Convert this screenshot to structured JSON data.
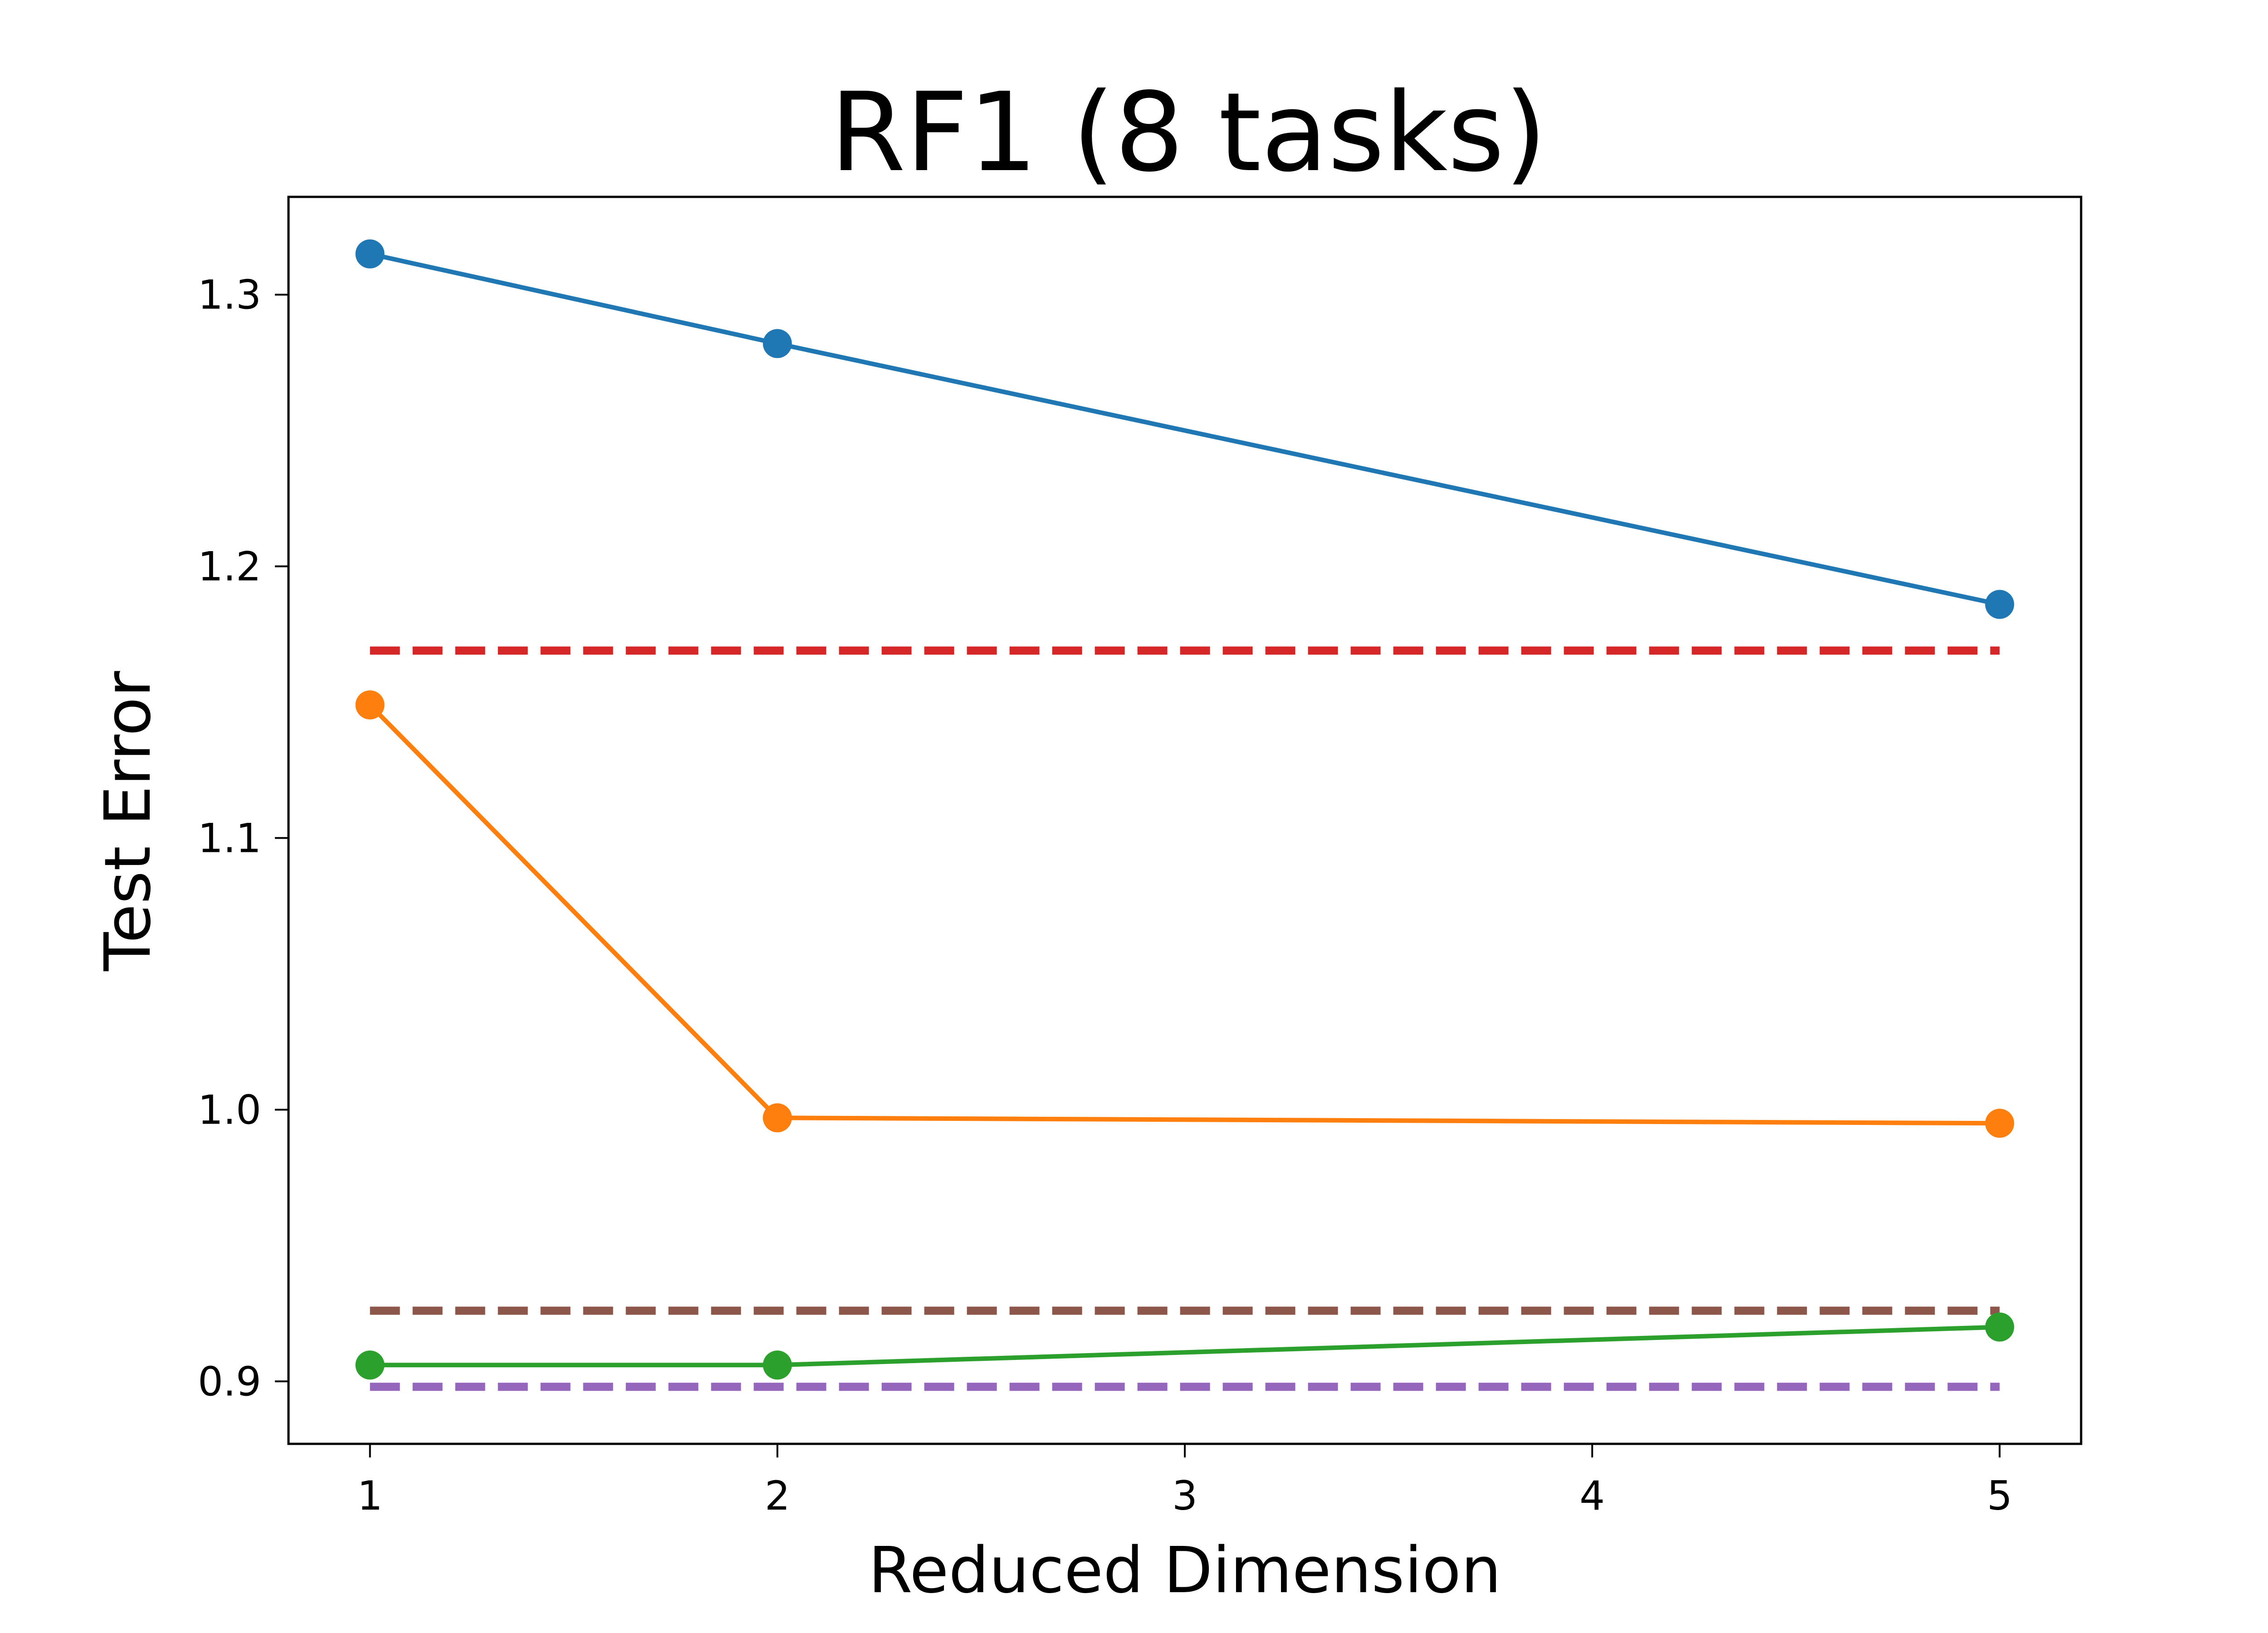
{
  "chart_data": {
    "type": "line",
    "title": "RF1 (8 tasks)",
    "xlabel": "Reduced Dimension",
    "ylabel": "Test Error",
    "xlim": [
      0.8,
      5.2
    ],
    "ylim": [
      0.877,
      1.336
    ],
    "xticks": [
      1,
      2,
      3,
      4,
      5
    ],
    "xtick_labels": [
      "1",
      "2",
      "3",
      "4",
      "5"
    ],
    "yticks": [
      0.9,
      1.0,
      1.1,
      1.2,
      1.3
    ],
    "ytick_labels": [
      "0.9",
      "1.0",
      "1.1",
      "1.2",
      "1.3"
    ],
    "grid": false,
    "series": [
      {
        "color": "#1f77b4",
        "style": "solid",
        "marker": "circle",
        "x": [
          1,
          2,
          5
        ],
        "y": [
          1.315,
          1.282,
          1.186
        ]
      },
      {
        "color": "#ff7f0e",
        "style": "solid",
        "marker": "circle",
        "x": [
          1,
          2,
          5
        ],
        "y": [
          1.149,
          0.997,
          0.995
        ]
      },
      {
        "color": "#2ca02c",
        "style": "solid",
        "marker": "circle",
        "x": [
          1,
          2,
          5
        ],
        "y": [
          0.906,
          0.906,
          0.92
        ]
      },
      {
        "color": "#d62728",
        "style": "dashed",
        "marker": "none",
        "x": [
          1,
          5
        ],
        "y": [
          1.169,
          1.169
        ]
      },
      {
        "color": "#8c564b",
        "style": "dashed",
        "marker": "none",
        "x": [
          1,
          5
        ],
        "y": [
          0.926,
          0.926
        ]
      },
      {
        "color": "#9467bd",
        "style": "dashed",
        "marker": "none",
        "x": [
          1,
          5
        ],
        "y": [
          0.898,
          0.898
        ]
      }
    ]
  }
}
